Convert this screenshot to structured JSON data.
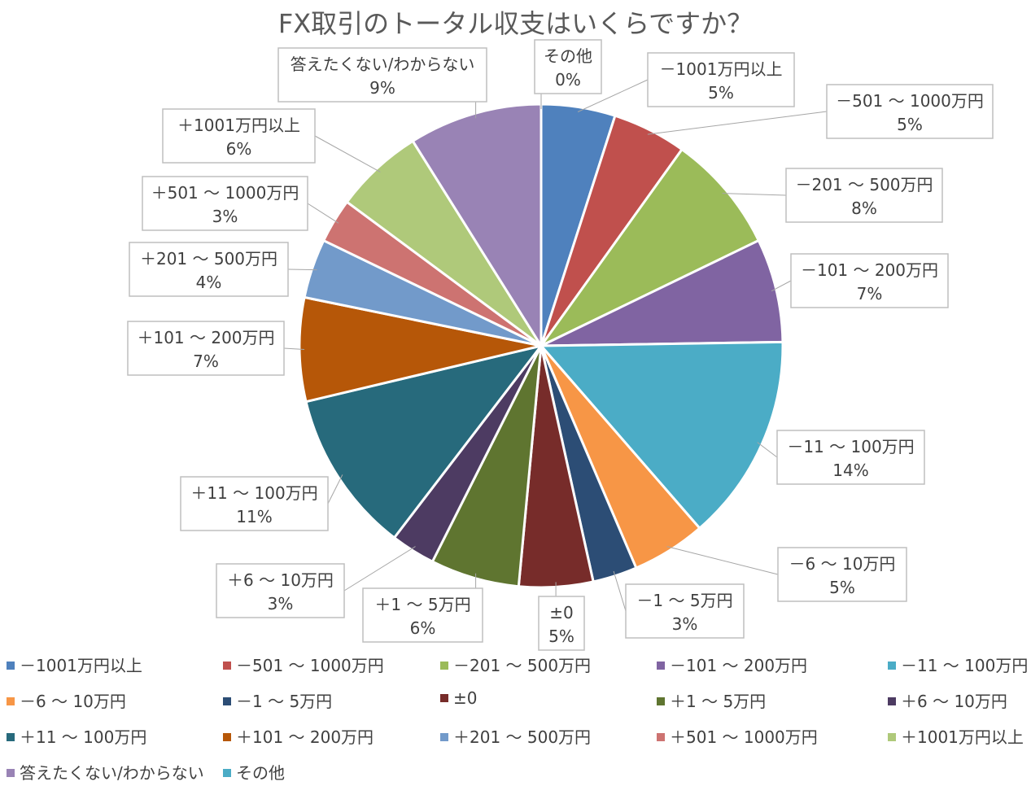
{
  "chart_data": {
    "type": "pie",
    "title": "FX取引のトータル収支はいくらですか？",
    "slices": [
      {
        "label": "－1001万円以上",
        "value": 5,
        "display": "5%",
        "color": "#4F81BD"
      },
      {
        "label": "－501 ～ 1000万円",
        "value": 5,
        "display": "5%",
        "color": "#C0504D"
      },
      {
        "label": "－201 ～ 500万円",
        "value": 8,
        "display": "8%",
        "color": "#9BBB59"
      },
      {
        "label": "－101 ～ 200万円",
        "value": 7,
        "display": "7%",
        "color": "#8064A2"
      },
      {
        "label": "－11 ～ 100万円",
        "value": 14,
        "display": "14%",
        "color": "#4BACC6"
      },
      {
        "label": "－6 ～ 10万円",
        "value": 5,
        "display": "5%",
        "color": "#F79646"
      },
      {
        "label": "－1 ～ 5万円",
        "value": 3,
        "display": "3%",
        "color": "#2C4D75"
      },
      {
        "label": "±0",
        "value": 5,
        "display": "5%",
        "color": "#772C2A"
      },
      {
        "label": "＋1 ～ 5万円",
        "value": 6,
        "display": "6%",
        "color": "#5F7530"
      },
      {
        "label": "＋6 ～ 10万円",
        "value": 3,
        "display": "3%",
        "color": "#4D3B62"
      },
      {
        "label": "＋11 ～ 100万円",
        "value": 11,
        "display": "11%",
        "color": "#276A7C"
      },
      {
        "label": "＋101 ～ 200万円",
        "value": 7,
        "display": "7%",
        "color": "#B65708"
      },
      {
        "label": "＋201 ～ 500万円",
        "value": 4,
        "display": "4%",
        "color": "#729ACA"
      },
      {
        "label": "＋501 ～ 1000万円",
        "value": 3,
        "display": "3%",
        "color": "#CD7371"
      },
      {
        "label": "＋1001万円以上",
        "value": 6,
        "display": "6%",
        "color": "#AFC97A"
      },
      {
        "label": "答えたくない/わからない",
        "value": 9,
        "display": "9%",
        "color": "#9983B5"
      },
      {
        "label": "その他",
        "value": 0,
        "display": "0%",
        "color": "#4BACC6"
      }
    ],
    "legend_position": "bottom"
  }
}
